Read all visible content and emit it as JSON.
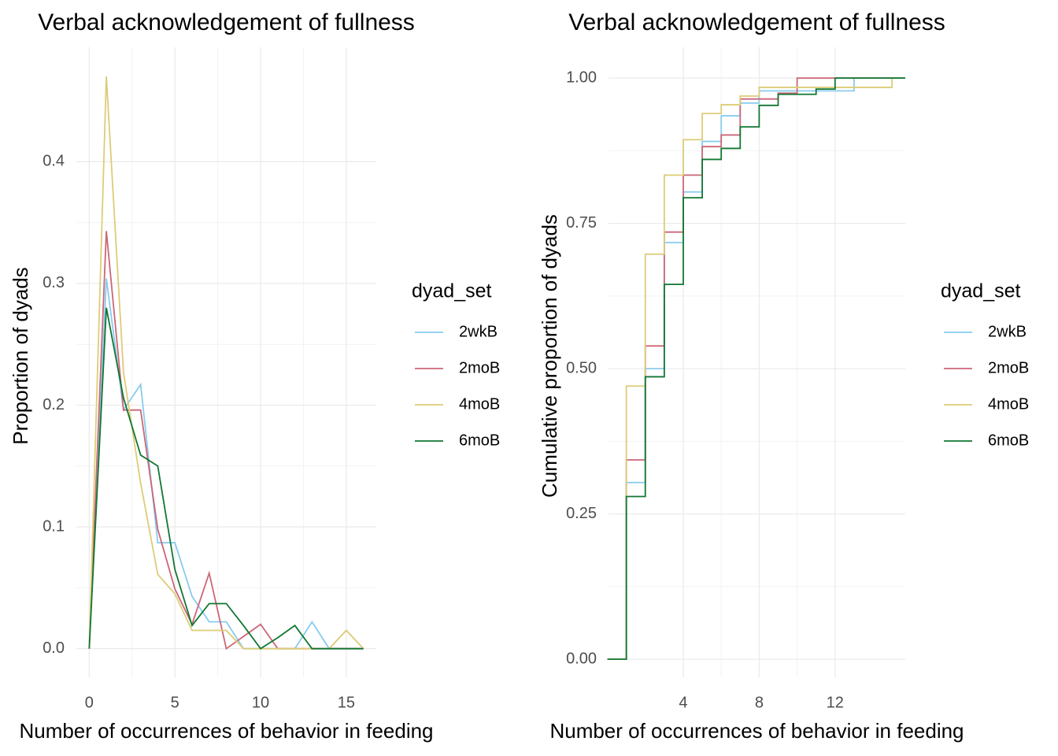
{
  "chart_data": [
    {
      "type": "line",
      "title": "Verbal acknowledgement of fullness",
      "x_label": "Number of occurrences of behavior in feeding",
      "y_label": "Proportion of dyads",
      "legend_title": "dyad_set",
      "grid": true,
      "minor_grid": true,
      "x": [
        0,
        1,
        2,
        3,
        4,
        5,
        6,
        7,
        8,
        9,
        10,
        11,
        12,
        13,
        14,
        15,
        16
      ],
      "xlim": [
        -0.75,
        16.75
      ],
      "xticks": [
        0,
        5,
        10,
        15
      ],
      "ylim": [
        -0.0235,
        0.494
      ],
      "yticks": [
        {
          "value": 0,
          "label": "0.0"
        },
        0.1,
        0.2,
        0.3,
        0.4
      ],
      "series": [
        {
          "name": "2wkB",
          "color": "#88CCEE",
          "values": [
            0,
            0.304,
            0.196,
            0.217,
            0.087,
            0.087,
            0.043,
            0.022,
            0.022,
            0,
            0,
            0,
            0,
            0.022,
            0,
            0,
            0
          ]
        },
        {
          "name": "2moB",
          "color": "#CC6677",
          "values": [
            0,
            0.343,
            0.196,
            0.196,
            0.098,
            0.049,
            0.02,
            0.062,
            0,
            0.01,
            0.02,
            0,
            0,
            0,
            0,
            0,
            0
          ]
        },
        {
          "name": "4moB",
          "color": "#DDCC77",
          "values": [
            0,
            0.47,
            0.227,
            0.136,
            0.061,
            0.045,
            0.015,
            0.015,
            0.015,
            0,
            0,
            0,
            0,
            0,
            0,
            0.015,
            0
          ]
        },
        {
          "name": "6moB",
          "color": "#117733",
          "values": [
            0,
            0.28,
            0.206,
            0.159,
            0.15,
            0.065,
            0.019,
            0.037,
            0.037,
            0.019,
            0,
            0.009,
            0.019,
            0,
            0,
            0,
            0
          ]
        }
      ]
    },
    {
      "type": "step",
      "title": "Verbal acknowledgement of fullness",
      "x_label": "Number of occurrences of behavior in feeding",
      "y_label": "Cumulative proportion of dyads",
      "legend_title": "dyad_set",
      "grid": true,
      "minor_grid": true,
      "x": [
        0,
        1,
        2,
        3,
        4,
        5,
        6,
        7,
        8,
        9,
        10,
        11,
        12,
        13,
        14,
        15
      ],
      "xlim": [
        0.06,
        15.7
      ],
      "xticks": [
        4,
        8,
        12
      ],
      "ylim": [
        -0.031,
        1.053
      ],
      "yticks": [
        {
          "value": 0,
          "label": "0.00"
        },
        {
          "value": 0.25,
          "label": "0.25"
        },
        {
          "value": 0.5,
          "label": "0.50"
        },
        {
          "value": 0.75,
          "label": "0.75"
        },
        {
          "value": 1,
          "label": "1.00"
        }
      ],
      "series": [
        {
          "name": "2wkB",
          "color": "#88CCEE",
          "values": [
            0,
            0.304,
            0.5,
            0.717,
            0.804,
            0.891,
            0.935,
            0.957,
            0.978,
            0.978,
            0.978,
            0.978,
            0.978,
            1,
            1,
            1
          ]
        },
        {
          "name": "2moB",
          "color": "#CC6677",
          "values": [
            0,
            0.343,
            0.539,
            0.735,
            0.833,
            0.882,
            0.902,
            0.964,
            0.964,
            0.974,
            1,
            1,
            1,
            1,
            1,
            1
          ]
        },
        {
          "name": "4moB",
          "color": "#DDCC77",
          "values": [
            0,
            0.47,
            0.697,
            0.833,
            0.894,
            0.939,
            0.954,
            0.969,
            0.984,
            0.984,
            0.984,
            0.984,
            0.984,
            0.984,
            0.984,
            1
          ]
        },
        {
          "name": "6moB",
          "color": "#117733",
          "values": [
            0,
            0.28,
            0.486,
            0.645,
            0.794,
            0.86,
            0.879,
            0.916,
            0.953,
            0.972,
            0.972,
            0.981,
            1,
            1,
            1,
            1
          ]
        }
      ]
    }
  ]
}
